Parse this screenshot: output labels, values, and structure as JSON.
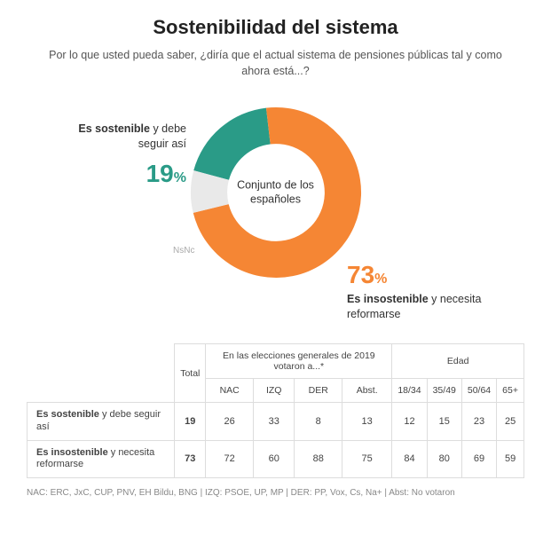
{
  "title": "Sostenibilidad del sistema",
  "question": "Por lo que usted pueda saber, ¿diría que el actual sistema de pensiones públicas tal y como ahora está...?",
  "donut": {
    "type": "donut",
    "center_label": "Conjunto de los españoles",
    "background": "#ffffff",
    "inner_r": 56,
    "outer_r": 98,
    "slices": [
      {
        "key": "sostenible",
        "value": 19,
        "color": "#2a9b87",
        "label_bold": "Es sostenible",
        "label_rest": " y debe seguir así",
        "pct": "19"
      },
      {
        "key": "insostenible",
        "value": 73,
        "color": "#f58634",
        "label_bold": "Es insostenible",
        "label_rest": " y necesita reformarse",
        "pct": "73"
      },
      {
        "key": "nsnc",
        "value": 8,
        "color": "#e9e9e9",
        "label": "NsNc"
      }
    ],
    "start_angle_deg": -165
  },
  "table": {
    "total_header": "Total",
    "group1": {
      "header": "En las elecciones generales de 2019 votaron a...*",
      "cols": [
        "NAC",
        "IZQ",
        "DER",
        "Abst."
      ]
    },
    "group2": {
      "header": "Edad",
      "cols": [
        "18/34",
        "35/49",
        "50/64",
        "65+"
      ]
    },
    "rows": [
      {
        "label_bold": "Es sostenible",
        "label_rest": " y debe seguir así",
        "total": 19,
        "g1": [
          26,
          33,
          8,
          13
        ],
        "g2": [
          12,
          15,
          23,
          25
        ]
      },
      {
        "label_bold": "Es insostenible",
        "label_rest": " y necesita reformarse",
        "total": 73,
        "g1": [
          72,
          60,
          88,
          75
        ],
        "g2": [
          84,
          80,
          69,
          59
        ]
      }
    ]
  },
  "legend": "NAC: ERC, JxC, CUP, PNV, EH Bildu, BNG | IZQ: PSOE, UP, MP | DER: PP, Vox, Cs, Na+ | Abst: No votaron"
}
